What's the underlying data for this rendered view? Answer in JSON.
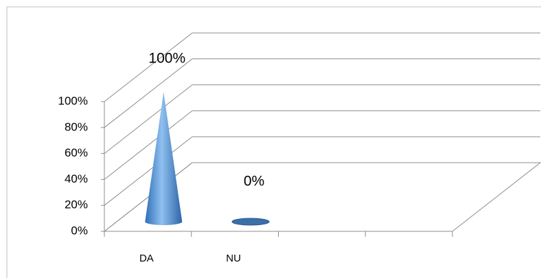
{
  "chart_data": {
    "type": "cone3d",
    "categories": [
      "DA",
      "NU",
      null,
      null
    ],
    "values": [
      100,
      0,
      null,
      null
    ],
    "value_labels": [
      "100%",
      "0%",
      null,
      null
    ],
    "color": "#4f8fd6",
    "ylim": [
      0,
      100
    ],
    "yticks": [
      {
        "value": 0,
        "label": "0%"
      },
      {
        "value": 20,
        "label": "20%"
      },
      {
        "value": 40,
        "label": "40%"
      },
      {
        "value": 60,
        "label": "60%"
      },
      {
        "value": 80,
        "label": "80%"
      },
      {
        "value": 100,
        "label": "100%"
      }
    ],
    "grid": true
  }
}
